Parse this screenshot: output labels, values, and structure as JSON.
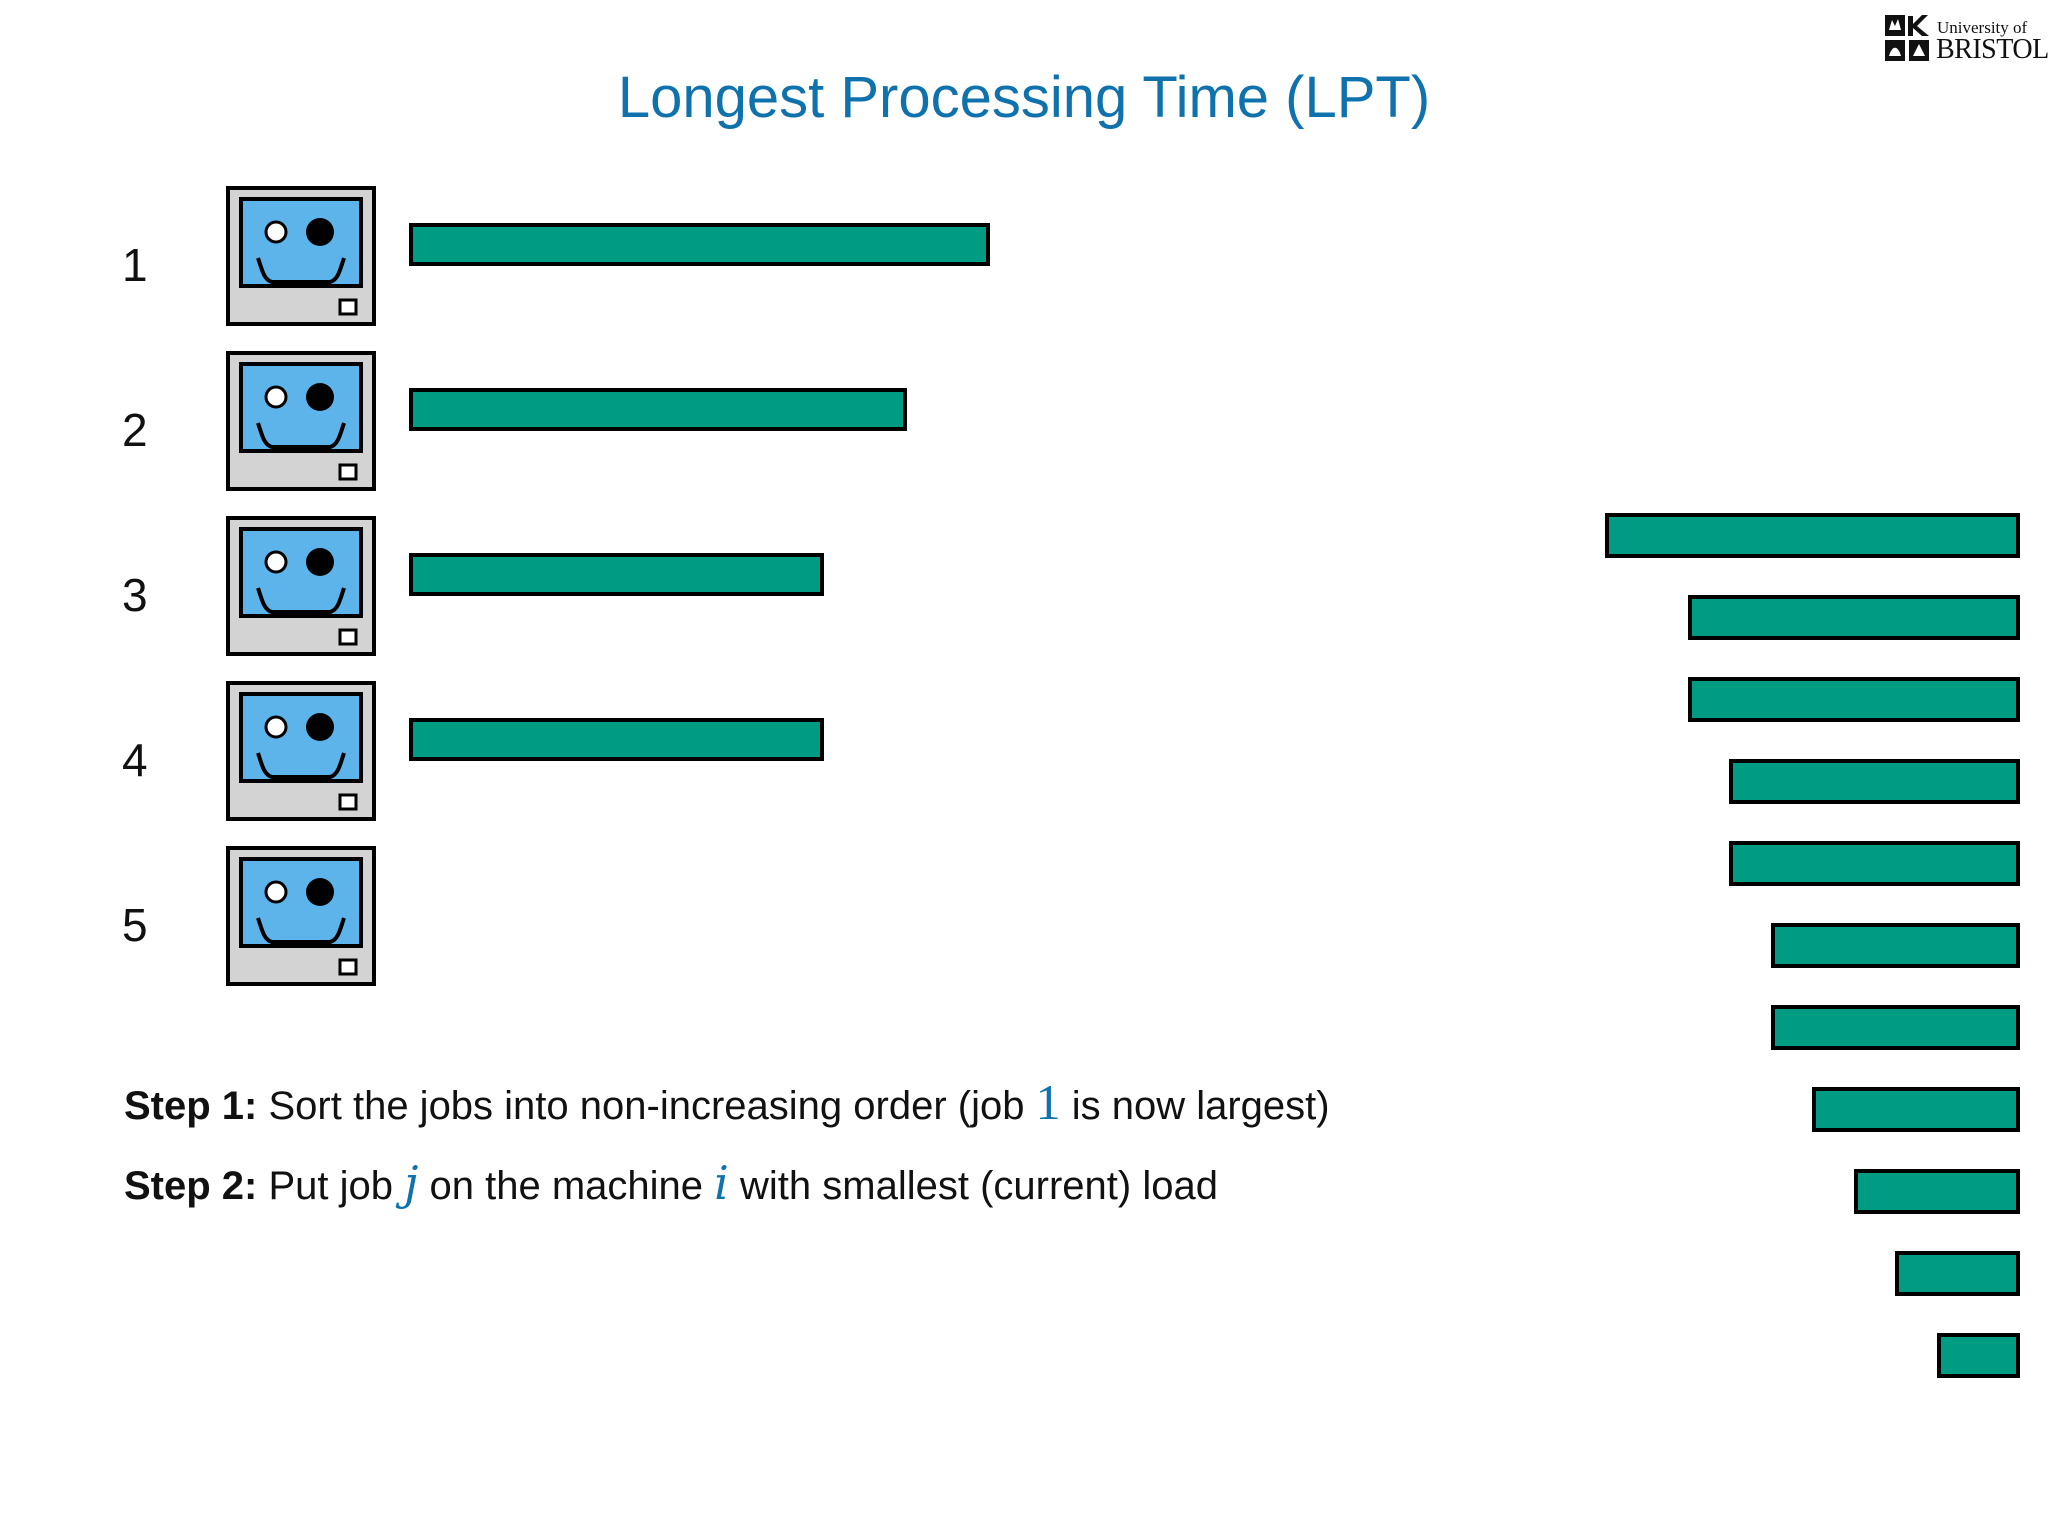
{
  "title": "Longest Processing Time (LPT)",
  "logo": {
    "line1": "University of",
    "line2": "BRISTOL"
  },
  "colors": {
    "title": "#0f72ac",
    "bar_fill": "#009b83",
    "bar_border": "#000000",
    "screen": "#5db4ea",
    "monitor_body": "#d3d3d3"
  },
  "icons": {
    "machine": "computer-monitor-icon",
    "logo": "university-crest-icon"
  },
  "machines": [
    {
      "number": "1",
      "load": 7
    },
    {
      "number": "2",
      "load": 6
    },
    {
      "number": "3",
      "load": 5
    },
    {
      "number": "4",
      "load": 5
    },
    {
      "number": "5",
      "load": 0
    }
  ],
  "remaining_jobs": [
    5,
    4,
    4,
    3.5,
    3.5,
    3,
    3,
    2.5,
    2,
    1.5,
    1
  ],
  "steps": [
    {
      "label": "Step 1:",
      "text_before": "Sort the jobs into non-increasing order (job",
      "math_1": "1",
      "text_after": "is now largest)"
    },
    {
      "label": "Step 2:",
      "text_before": "Put job",
      "math_1": "j",
      "text_middle": "on the machine",
      "math_2": "i",
      "text_after": "with smallest (current) load"
    }
  ]
}
